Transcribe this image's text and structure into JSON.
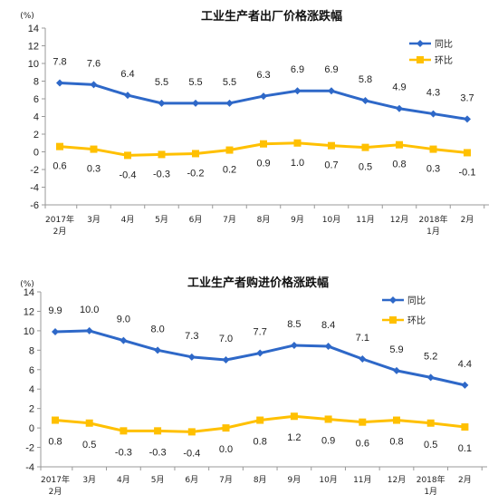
{
  "colors": {
    "yoy": "#2E68C8",
    "mom": "#FFC000",
    "axis": "#999999"
  },
  "chart_data": [
    {
      "type": "line",
      "title": "工业生产者出厂价格涨跌幅",
      "unit_label": "(%)",
      "categories": [
        [
          "2017年",
          "2月"
        ],
        [
          "3月"
        ],
        [
          "4月"
        ],
        [
          "5月"
        ],
        [
          "6月"
        ],
        [
          "7月"
        ],
        [
          "8月"
        ],
        [
          "9月"
        ],
        [
          "10月"
        ],
        [
          "11月"
        ],
        [
          "12月"
        ],
        [
          "2018年",
          "1月"
        ],
        [
          "2月"
        ]
      ],
      "y_ticks": [
        "14",
        "12",
        "10",
        "8",
        "6",
        "4",
        "2",
        "0",
        "-2",
        "-4",
        "-6"
      ],
      "ylim": [
        -6,
        14
      ],
      "grid": false,
      "legend_position": "top-right",
      "series": [
        {
          "name": "同比",
          "color": "#2E68C8",
          "marker": "diamond",
          "values": [
            7.8,
            7.6,
            6.4,
            5.5,
            5.5,
            5.5,
            6.3,
            6.9,
            6.9,
            5.8,
            4.9,
            4.3,
            3.7
          ],
          "labels": [
            "7.8",
            "7.6",
            "6.4",
            "5.5",
            "5.5",
            "5.5",
            "6.3",
            "6.9",
            "6.9",
            "5.8",
            "4.9",
            "4.3",
            "3.7"
          ]
        },
        {
          "name": "环比",
          "color": "#FFC000",
          "marker": "square",
          "values": [
            0.6,
            0.3,
            -0.4,
            -0.3,
            -0.2,
            0.2,
            0.9,
            1.0,
            0.7,
            0.5,
            0.8,
            0.3,
            -0.1
          ],
          "labels": [
            "0.6",
            "0.3",
            "-0.4",
            "-0.3",
            "-0.2",
            "0.2",
            "0.9",
            "1.0",
            "0.7",
            "0.5",
            "0.8",
            "0.3",
            "-0.1"
          ]
        }
      ]
    },
    {
      "type": "line",
      "title": "工业生产者购进价格涨跌幅",
      "unit_label": "(%)",
      "categories": [
        [
          "2017年",
          "2月"
        ],
        [
          "3月"
        ],
        [
          "4月"
        ],
        [
          "5月"
        ],
        [
          "6月"
        ],
        [
          "7月"
        ],
        [
          "8月"
        ],
        [
          "9月"
        ],
        [
          "10月"
        ],
        [
          "11月"
        ],
        [
          "12月"
        ],
        [
          "2018年",
          "1月"
        ],
        [
          "2月"
        ]
      ],
      "y_ticks": [
        "14",
        "12",
        "10",
        "8",
        "6",
        "4",
        "2",
        "0",
        "-2",
        "-4"
      ],
      "ylim": [
        -4,
        14
      ],
      "grid": false,
      "legend_position": "top-right",
      "series": [
        {
          "name": "同比",
          "color": "#2E68C8",
          "marker": "diamond",
          "values": [
            9.9,
            10.0,
            9.0,
            8.0,
            7.3,
            7.0,
            7.7,
            8.5,
            8.4,
            7.1,
            5.9,
            5.2,
            4.4
          ],
          "labels": [
            "9.9",
            "10.0",
            "9.0",
            "8.0",
            "7.3",
            "7.0",
            "7.7",
            "8.5",
            "8.4",
            "7.1",
            "5.9",
            "5.2",
            "4.4"
          ]
        },
        {
          "name": "环比",
          "color": "#FFC000",
          "marker": "square",
          "values": [
            0.8,
            0.5,
            -0.3,
            -0.3,
            -0.4,
            0.0,
            0.8,
            1.2,
            0.9,
            0.6,
            0.8,
            0.5,
            0.1
          ],
          "labels": [
            "0.8",
            "0.5",
            "-0.3",
            "-0.3",
            "-0.4",
            "0.0",
            "0.8",
            "1.2",
            "0.9",
            "0.6",
            "0.8",
            "0.5",
            "0.1"
          ]
        }
      ]
    }
  ]
}
